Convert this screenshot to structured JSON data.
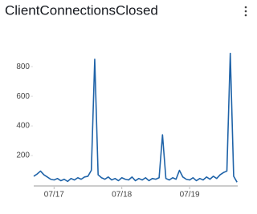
{
  "chart_data": {
    "type": "line",
    "title": "ClientConnectionsClosed",
    "x": [
      16.7,
      16.75,
      16.8,
      16.85,
      16.9,
      16.95,
      17.0,
      17.05,
      17.1,
      17.15,
      17.2,
      17.25,
      17.3,
      17.35,
      17.4,
      17.45,
      17.5,
      17.55,
      17.6,
      17.65,
      17.7,
      17.75,
      17.8,
      17.85,
      17.9,
      17.95,
      18.0,
      18.05,
      18.1,
      18.15,
      18.2,
      18.25,
      18.3,
      18.35,
      18.4,
      18.45,
      18.5,
      18.55,
      18.6,
      18.65,
      18.7,
      18.75,
      18.8,
      18.85,
      18.9,
      18.95,
      19.0,
      19.05,
      19.1,
      19.15,
      19.2,
      19.25,
      19.3,
      19.35,
      19.4,
      19.45,
      19.5,
      19.55,
      19.6,
      19.65,
      19.7
    ],
    "values": [
      60,
      75,
      95,
      70,
      55,
      40,
      35,
      45,
      30,
      40,
      25,
      45,
      35,
      50,
      40,
      55,
      60,
      100,
      850,
      70,
      50,
      40,
      55,
      35,
      45,
      30,
      50,
      40,
      35,
      55,
      30,
      45,
      35,
      50,
      30,
      45,
      40,
      50,
      340,
      45,
      35,
      50,
      40,
      100,
      55,
      40,
      35,
      50,
      30,
      45,
      35,
      55,
      40,
      60,
      45,
      70,
      85,
      95,
      890,
      60,
      20
    ],
    "color": "#1f63a8",
    "xlim": [
      16.7,
      19.71
    ],
    "xticks": [
      {
        "value": 17,
        "label": "07/17"
      },
      {
        "value": 18,
        "label": "07/18"
      },
      {
        "value": 19,
        "label": "07/19"
      }
    ],
    "ylim": [
      0,
      920
    ],
    "yticks": [
      200,
      400,
      600,
      800
    ]
  }
}
